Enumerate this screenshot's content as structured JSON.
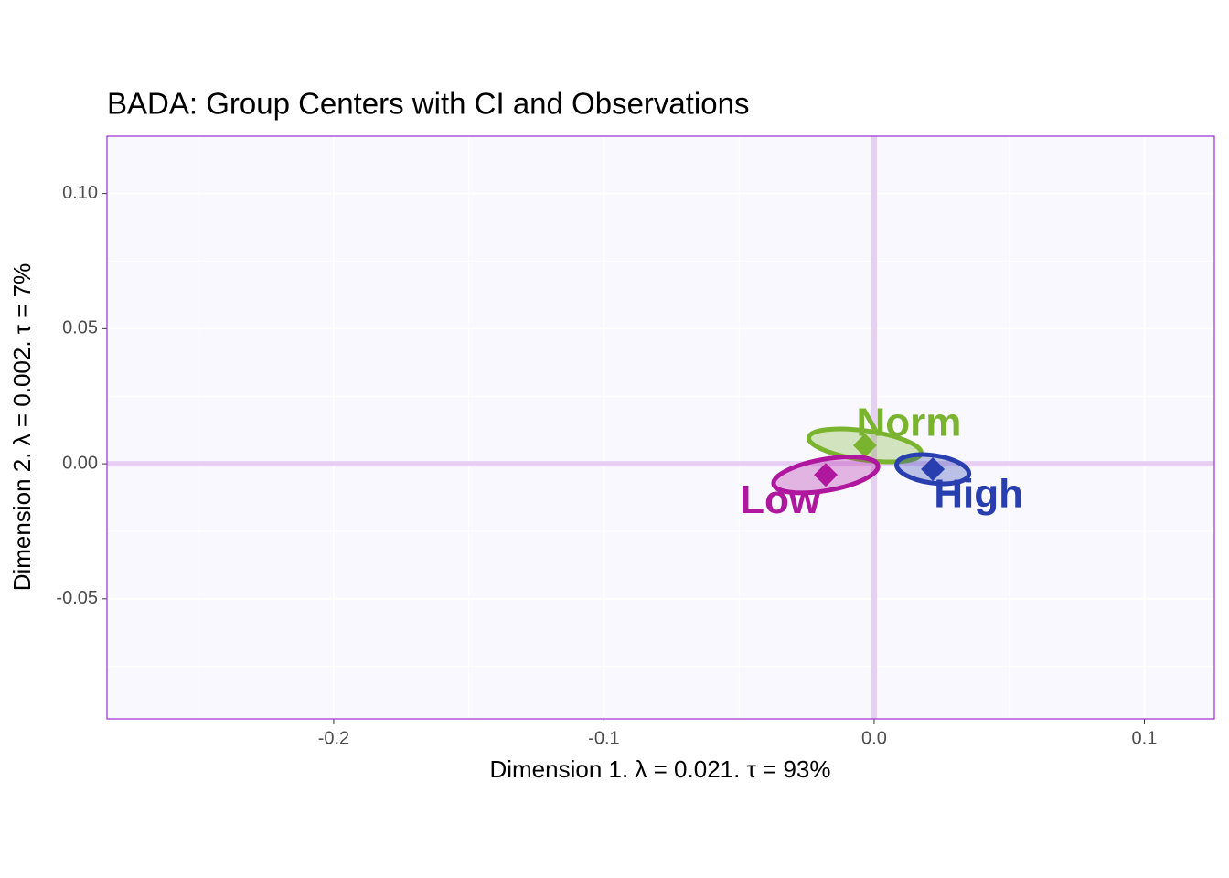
{
  "chart_data": {
    "type": "scatter",
    "title": "BADA: Group Centers with CI and Observations",
    "x_label": "Dimension 1.   λ = 0.021.  τ = 93%",
    "y_label": "Dimension 2.   λ = 0.002.  τ = 7%",
    "xlim": [
      -0.2839,
      0.1259
    ],
    "ylim": [
      -0.0944,
      0.1212
    ],
    "xticks": [
      -0.2,
      -0.1,
      {
        "value": 0,
        "label": "0.0"
      },
      0.1
    ],
    "yticks": [
      {
        "value": -0.05,
        "label": "-0.05"
      },
      {
        "value": 0,
        "label": "0.00"
      },
      {
        "value": 0.05,
        "label": "0.05"
      },
      {
        "value": 0.1,
        "label": "0.10"
      }
    ],
    "x_minor_grid": [
      -0.25,
      -0.15,
      -0.05,
      0.05
    ],
    "y_minor_grid": [
      -0.075,
      -0.025,
      0.025,
      0.075
    ],
    "grid": true,
    "series": [
      {
        "name": "Norm",
        "color": "#7ab32e",
        "x": -0.0034,
        "y": 0.0068,
        "ellipse": {
          "rx": 0.021,
          "ry": 0.0054,
          "angle": 8
        }
      },
      {
        "name": "Low",
        "color": "#b0179f",
        "x": -0.0179,
        "y": -0.0041,
        "ellipse": {
          "rx": 0.0196,
          "ry": 0.0058,
          "angle": -10
        }
      },
      {
        "name": "High",
        "color": "#2a3faf",
        "x": 0.0217,
        "y": -0.002,
        "ellipse": {
          "rx": 0.0135,
          "ry": 0.0051,
          "angle": 8
        }
      }
    ]
  }
}
